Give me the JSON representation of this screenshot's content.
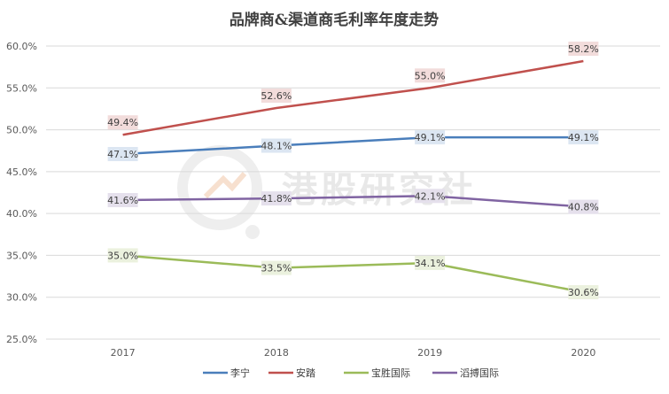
{
  "chart_data": {
    "type": "line",
    "title": "品牌商&渠道商毛利率年度走势",
    "categories": [
      "2017",
      "2018",
      "2019",
      "2020"
    ],
    "series": [
      {
        "name": "李宁",
        "color": "#4a7ebb",
        "label_bg": "#dce6f2",
        "values": [
          47.1,
          48.1,
          49.1,
          49.1
        ],
        "labels": [
          "47.1%",
          "48.1%",
          "49.1%",
          "49.1%"
        ]
      },
      {
        "name": "安踏",
        "color": "#c0504d",
        "label_bg": "#f2dcdb",
        "values": [
          49.4,
          52.6,
          55.0,
          58.2
        ],
        "labels": [
          "49.4%",
          "52.6%",
          "55.0%",
          "58.2%"
        ]
      },
      {
        "name": "宝胜国际",
        "color": "#9bbb59",
        "label_bg": "#ebf1de",
        "values": [
          35.0,
          33.5,
          34.1,
          30.6
        ],
        "labels": [
          "35.0%",
          "33.5%",
          "34.1%",
          "30.6%"
        ]
      },
      {
        "name": "滔搏国际",
        "color": "#8064a2",
        "label_bg": "#e5e0ec",
        "values": [
          41.6,
          41.8,
          42.1,
          40.8
        ],
        "labels": [
          "41.6%",
          "41.8%",
          "42.1%",
          "40.8%"
        ]
      }
    ],
    "ylim": [
      25,
      60
    ],
    "y_ticks": [
      "25.0%",
      "30.0%",
      "35.0%",
      "40.0%",
      "45.0%",
      "50.0%",
      "55.0%",
      "60.0%"
    ],
    "y_tick_values": [
      25,
      30,
      35,
      40,
      45,
      50,
      55,
      60
    ],
    "grid": true,
    "legend_position": "bottom"
  },
  "watermark": {
    "text": "港股研究社"
  }
}
